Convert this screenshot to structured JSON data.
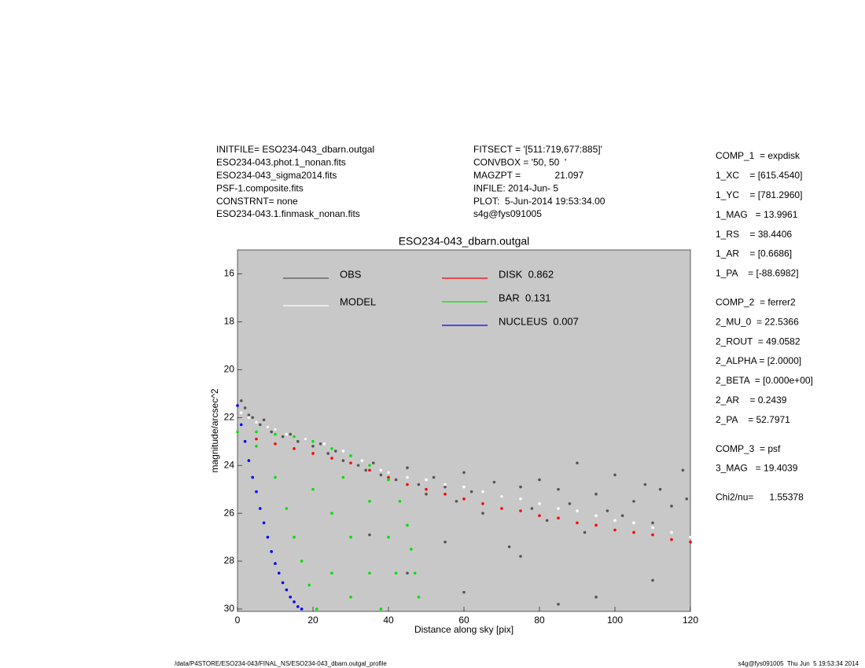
{
  "header": {
    "left": [
      "INITFILE= ESO234-043_dbarn.outgal",
      "ESO234-043.phot.1_nonan.fits",
      "ESO234-043_sigma2014.fits",
      "PSF-1.composite.fits",
      "CONSTRNT= none",
      "ESO234-043.1.finmask_nonan.fits"
    ],
    "middle": [
      "FITSECT = '[511:719,677:885]'",
      "CONVBOX = '50, 50  '",
      "MAGZPT =             21.097",
      "INFILE: 2014-Jun- 5",
      "PLOT:  5-Jun-2014 19:53:34.00",
      "s4g@fys091005"
    ]
  },
  "params": [
    [
      "COMP_1  = expdisk",
      "1_XC    = [615.4540]",
      "1_YC    = [781.2960]",
      "1_MAG   = 13.9961",
      "1_RS    = 38.4406",
      "1_AR    = [0.6686]",
      "1_PA    = [-88.6982]"
    ],
    [
      "COMP_2  = ferrer2",
      "2_MU_0  = 22.5366",
      "2_ROUT  = 49.0582",
      "2_ALPHA = [2.0000]",
      "2_BETA  = [0.000e+00]",
      "2_AR    = 0.2439",
      "2_PA    = 52.7971"
    ],
    [
      "COMP_3  = psf",
      "3_MAG   = 19.4039"
    ],
    [
      "Chi2/nu=      1.55378"
    ]
  ],
  "footer": {
    "left": "/data/P4STORE/ESO234-043/FINAL_NS/ESO234-043_dbarn.outgal_profile",
    "right": "s4g@fys091005  Thu Jun  5 19:53:34 2014"
  },
  "chart_data": {
    "type": "scatter",
    "title": "ESO234-043_dbarn.outgal",
    "x_label": "Distance along sky [pix]",
    "y_label": "magnitude/arcsec^2",
    "xlim": [
      0,
      120
    ],
    "ylim": [
      30.1,
      15
    ],
    "xticks": [
      0,
      20,
      40,
      60,
      80,
      100,
      120
    ],
    "yticks": [
      16,
      18,
      20,
      22,
      24,
      26,
      28,
      30
    ],
    "background": "#c8c8c8",
    "series": [
      {
        "name": "OBS",
        "color": "#555555",
        "x": [
          1,
          2,
          3,
          4,
          5,
          6,
          7,
          8,
          9,
          10,
          12,
          14,
          16,
          18,
          20,
          22,
          24,
          26,
          28,
          30,
          32,
          34,
          36,
          38,
          40,
          42,
          45,
          48,
          50,
          52,
          55,
          58,
          60,
          62,
          65,
          68,
          70,
          72,
          75,
          78,
          80,
          82,
          85,
          88,
          90,
          92,
          95,
          98,
          100,
          102,
          105,
          108,
          110,
          112,
          115,
          118,
          119,
          45,
          60,
          75,
          95,
          110,
          35,
          55,
          85
        ],
        "y": [
          21.3,
          21.6,
          21.9,
          22.0,
          22.2,
          22.3,
          22.1,
          22.4,
          22.6,
          22.5,
          22.8,
          22.7,
          23.0,
          22.9,
          23.2,
          23.1,
          23.5,
          23.4,
          23.8,
          23.6,
          24.0,
          24.2,
          23.9,
          24.4,
          24.3,
          24.6,
          24.1,
          24.8,
          25.2,
          24.5,
          24.9,
          25.5,
          24.3,
          25.1,
          26.0,
          24.7,
          25.3,
          27.4,
          24.9,
          25.8,
          24.6,
          26.3,
          25.0,
          25.6,
          23.9,
          26.8,
          25.2,
          25.9,
          24.4,
          26.1,
          25.5,
          24.8,
          26.4,
          25.0,
          25.7,
          24.2,
          25.4,
          28.5,
          29.3,
          27.8,
          29.5,
          28.8,
          26.9,
          27.2,
          29.8
        ]
      },
      {
        "name": "MODEL",
        "color": "#ffffff",
        "x": [
          1,
          3,
          5,
          8,
          10,
          13,
          15,
          18,
          20,
          23,
          25,
          28,
          30,
          33,
          35,
          38,
          40,
          45,
          50,
          55,
          60,
          65,
          70,
          75,
          80,
          85,
          90,
          95,
          100,
          105,
          110,
          115,
          120
        ],
        "y": [
          21.8,
          22.0,
          22.2,
          22.4,
          22.5,
          22.7,
          22.8,
          22.9,
          23.0,
          23.1,
          23.3,
          23.4,
          23.6,
          23.8,
          24.0,
          24.2,
          24.3,
          24.5,
          24.6,
          24.8,
          24.9,
          25.1,
          25.3,
          25.4,
          25.6,
          25.8,
          25.9,
          26.1,
          26.3,
          26.4,
          26.6,
          26.8,
          27.0
        ]
      },
      {
        "name": "DISK  0.862",
        "color": "#ff0000",
        "x": [
          5,
          10,
          15,
          20,
          25,
          30,
          35,
          40,
          45,
          50,
          55,
          60,
          65,
          70,
          75,
          80,
          85,
          90,
          95,
          100,
          105,
          110,
          115,
          120
        ],
        "y": [
          22.9,
          23.1,
          23.3,
          23.5,
          23.7,
          23.9,
          24.2,
          24.5,
          24.8,
          25.0,
          25.2,
          25.4,
          25.6,
          25.8,
          25.9,
          26.1,
          26.2,
          26.4,
          26.5,
          26.7,
          26.8,
          26.9,
          27.1,
          27.2
        ]
      },
      {
        "name": "BAR  0.131",
        "color": "#00e000",
        "x": [
          0,
          5,
          10,
          15,
          20,
          25,
          30,
          35,
          40,
          43,
          45,
          46,
          47,
          48,
          5,
          10,
          13,
          15,
          17,
          19,
          21,
          20,
          25,
          30,
          35,
          28,
          35,
          40,
          25,
          30,
          42,
          38
        ],
        "y": [
          22.6,
          22.6,
          22.7,
          22.8,
          23.0,
          23.3,
          23.6,
          24.0,
          24.6,
          25.5,
          26.5,
          27.5,
          28.5,
          29.5,
          23.2,
          24.5,
          25.8,
          27.0,
          28.0,
          29.0,
          30.0,
          25.0,
          26.0,
          27.0,
          28.5,
          24.5,
          25.5,
          27.0,
          28.5,
          29.5,
          28.5,
          30.0
        ]
      },
      {
        "name": "NUCLEUS  0.007",
        "color": "#0000ff",
        "x": [
          0,
          1,
          2,
          3,
          4,
          5,
          6,
          7,
          8,
          9,
          10,
          11,
          12,
          13,
          14,
          15,
          16,
          17
        ],
        "y": [
          21.5,
          22.3,
          23.0,
          23.8,
          24.5,
          25.1,
          25.8,
          26.4,
          27.0,
          27.6,
          28.1,
          28.5,
          28.9,
          29.2,
          29.5,
          29.7,
          29.9,
          30.0
        ]
      }
    ]
  }
}
